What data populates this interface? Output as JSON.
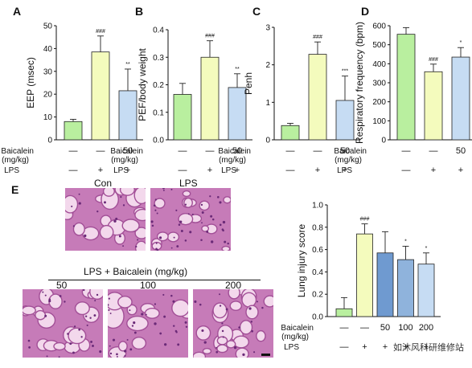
{
  "colors": {
    "green": "#b9ef9f",
    "yellow": "#f4fbbd",
    "lightblue": "#c6dcf3",
    "midblue": "#8fb3dc",
    "histo_bg": "#f3d8ec",
    "histo_tissue": "#c67bb8"
  },
  "treatment_rows": {
    "baicalein_label": "Baicalein",
    "unit_label": "(mg/kg)",
    "lps_label": "LPS",
    "baicalein_values": [
      "—",
      "—",
      "50"
    ],
    "lps_values": [
      "—",
      "+",
      "+"
    ]
  },
  "panel_e_rows": {
    "baicalein_values": [
      "—",
      "—",
      "50",
      "100",
      "200"
    ],
    "lps_values": [
      "—",
      "+",
      "+",
      "+",
      "+"
    ]
  },
  "histology": {
    "con": "Con",
    "lps": "LPS",
    "group_title": "LPS + Baicalein (mg/kg)",
    "doses": [
      "50",
      "100",
      "200"
    ]
  },
  "watermark": "如沐风科研维修站",
  "chart_data": [
    {
      "panel": "A",
      "type": "bar",
      "ylabel": "EEP (msec)",
      "ylim": [
        0,
        50
      ],
      "yticks": [
        0,
        10,
        20,
        30,
        40,
        50
      ],
      "values": [
        8,
        38.5,
        21.5
      ],
      "errors": [
        1,
        7,
        9.5
      ],
      "annotations": [
        "",
        "###",
        "**"
      ],
      "colors": [
        "#b9ef9f",
        "#f4fbbd",
        "#c6dcf3"
      ]
    },
    {
      "panel": "B",
      "type": "bar",
      "ylabel": "PEF/body weight",
      "ylim": [
        0,
        0.4
      ],
      "yticks": [
        0.0,
        0.1,
        0.2,
        0.3,
        0.4
      ],
      "values": [
        0.165,
        0.3,
        0.19
      ],
      "errors": [
        0.04,
        0.06,
        0.05
      ],
      "annotations": [
        "",
        "###",
        "**"
      ],
      "colors": [
        "#b9ef9f",
        "#f4fbbd",
        "#c6dcf3"
      ]
    },
    {
      "panel": "C",
      "type": "bar",
      "ylabel": "Penh",
      "ylim": [
        0,
        3
      ],
      "yticks": [
        0,
        1,
        2,
        3
      ],
      "values": [
        0.38,
        2.28,
        1.05
      ],
      "errors": [
        0.06,
        0.33,
        0.65
      ],
      "annotations": [
        "",
        "###",
        "***"
      ],
      "colors": [
        "#b9ef9f",
        "#f4fbbd",
        "#c6dcf3"
      ]
    },
    {
      "panel": "D",
      "type": "bar",
      "ylabel": "Respiratory frequency (bpm)",
      "ylim": [
        0,
        600
      ],
      "yticks": [
        0,
        100,
        200,
        300,
        400,
        500,
        600
      ],
      "values": [
        555,
        358,
        435
      ],
      "errors": [
        35,
        40,
        50
      ],
      "annotations": [
        "",
        "###",
        "*"
      ],
      "colors": [
        "#b9ef9f",
        "#f4fbbd",
        "#c6dcf3"
      ]
    },
    {
      "panel": "E",
      "type": "bar",
      "ylabel": "Lung injury score",
      "ylim": [
        0,
        1.0
      ],
      "yticks": [
        0.0,
        0.2,
        0.4,
        0.6,
        0.8,
        1.0
      ],
      "values": [
        0.07,
        0.74,
        0.57,
        0.51,
        0.47
      ],
      "errors": [
        0.1,
        0.09,
        0.19,
        0.12,
        0.1
      ],
      "annotations": [
        "",
        "###",
        "",
        "*",
        "*"
      ],
      "colors": [
        "#b9ef9f",
        "#f4fbbd",
        "#6f9ad0",
        "#8fb3dc",
        "#c6dcf3"
      ]
    }
  ]
}
